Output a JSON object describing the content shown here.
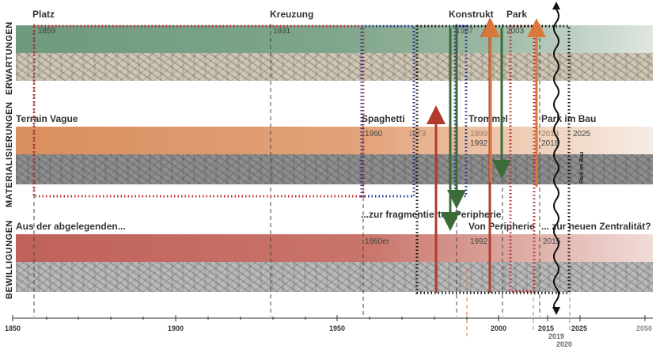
{
  "rows": {
    "erwartungen": {
      "label": "ERWARTUNGEN",
      "headings": [
        "Platz",
        "Kreuzung",
        "Konstrukt",
        "Park"
      ],
      "years": [
        "1859",
        "1931",
        "1987",
        "2003"
      ],
      "band_color": "#7fa58a"
    },
    "materialisierungen": {
      "label": "MATERIALISIERUNGEN",
      "headings": [
        "Terrain Vague",
        "Spaghetti",
        "Trommel",
        "Park im Bau"
      ],
      "years": [
        "1960",
        "1973",
        "1989",
        "1992",
        "2013",
        "2018",
        "2025"
      ],
      "vertical_note": "Park im Bau",
      "band_color": "#e3a37a"
    },
    "bewilligungen": {
      "label": "BEWILLIGUNGEN",
      "headings": [
        "Aus der abgelegenden...",
        "...zur fragmentierten Peripherie",
        "Von Peripherie",
        "... zur neuen Zentralität?"
      ],
      "years": [
        "1960er",
        "1992",
        "2015"
      ],
      "band_color": "#c9756b"
    }
  },
  "axis": {
    "ticks": [
      "1850",
      "1900",
      "1950",
      "2000",
      "2015",
      "2025",
      "2050"
    ],
    "extra_ticks": [
      "2019",
      "2020"
    ]
  },
  "colors": {
    "arrow_red": "#b03a2e",
    "arrow_orange": "#d9783a",
    "arrow_green": "#3c6b3a",
    "frame_red": "#c0282d",
    "frame_blue": "#23348f",
    "frame_black": "#111111"
  }
}
